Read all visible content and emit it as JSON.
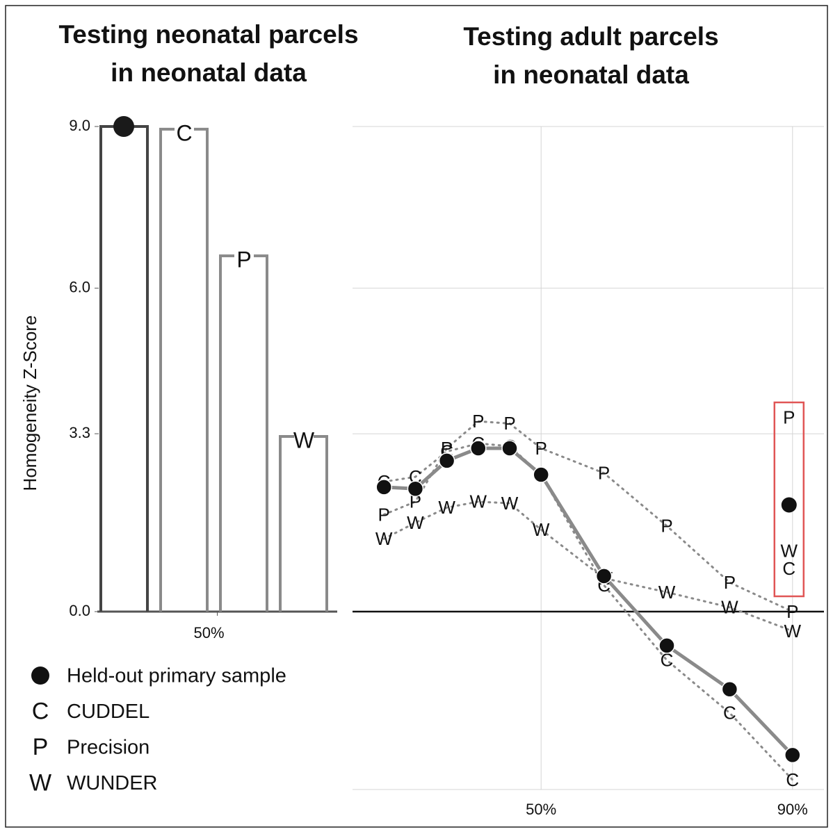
{
  "chart_data": [
    {
      "type": "bar",
      "title": [
        "Testing neonatal parcels",
        "in neonatal data"
      ],
      "ylabel": "Homogeneity Z-Score",
      "values": [
        9.0,
        8.95,
        6.6,
        3.25
      ],
      "colors": [
        "#444444",
        "#8a8a8a",
        "#8a8a8a",
        "#8a8a8a"
      ],
      "ylim": [
        0,
        9.0
      ],
      "yticks": [
        {
          "value": 0,
          "label": "0.0"
        },
        3.3,
        {
          "value": 6,
          "label": "6.0"
        },
        {
          "value": 9,
          "label": "9.0"
        }
      ],
      "xlim": [
        0,
        100
      ],
      "xticks": [
        {
          "value": 50,
          "label": "50%"
        }
      ]
    },
    {
      "type": "line",
      "title": [
        "Testing adult parcels",
        "in neonatal data"
      ],
      "x": [
        25,
        30,
        35,
        40,
        45,
        50,
        60,
        70,
        80,
        90
      ],
      "xlim": [
        20,
        95
      ],
      "xticks": [
        {
          "value": 50,
          "label": "50%"
        },
        {
          "value": 90,
          "label": "90%"
        }
      ],
      "ylim": [
        -3.3,
        9.0
      ],
      "yticks": [
        -3.3,
        0,
        3.3,
        6,
        9
      ],
      "grid": true,
      "zero_line": true,
      "series": [
        {
          "name": "Held-out primary sample",
          "color": "#111111",
          "values": [
            2.31,
            2.28,
            2.8,
            3.03,
            3.03,
            2.54,
            0.66,
            -0.63,
            -1.44,
            -2.66
          ]
        },
        {
          "name": "CUDDEL",
          "marker": "C",
          "color": "#111111",
          "values": [
            2.41,
            2.5,
            2.97,
            3.12,
            3.07,
            2.54,
            0.49,
            -0.9,
            -1.88,
            -3.12
          ]
        },
        {
          "name": "Precision",
          "marker": "P",
          "color": "#111111",
          "values": [
            1.8,
            2.04,
            3.03,
            3.53,
            3.49,
            3.03,
            2.57,
            1.59,
            0.54,
            0.0
          ]
        },
        {
          "name": "WUNDER",
          "marker": "W",
          "color": "#111111",
          "values": [
            1.35,
            1.65,
            1.93,
            2.04,
            2.01,
            1.52,
            0.62,
            0.36,
            0.08,
            -0.36
          ]
        }
      ],
      "inset_values": [
        1.98,
        0.77,
        3.58,
        1.1
      ],
      "inset_color": "#e05555"
    }
  ]
}
